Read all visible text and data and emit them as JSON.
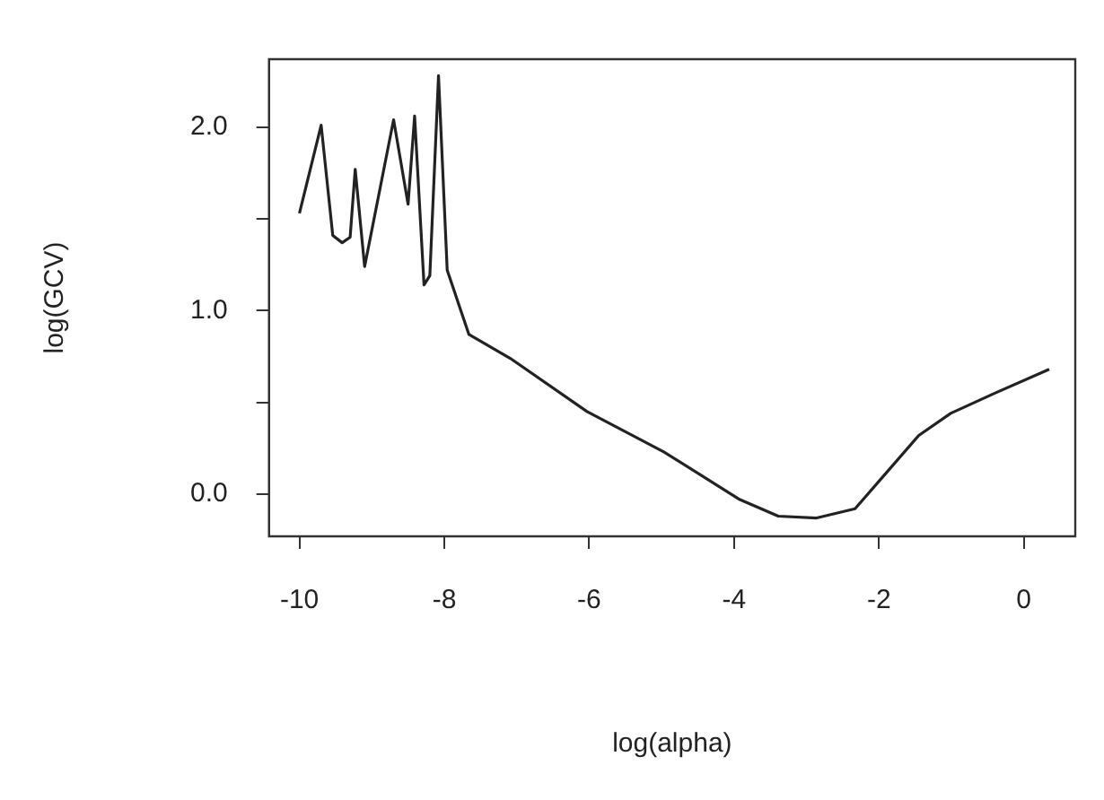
{
  "chart_data": {
    "type": "line",
    "xlabel": "log(alpha)",
    "ylabel": "log(GCV)",
    "x": [
      -10.0,
      -9.7,
      -9.54,
      -9.41,
      -9.3,
      -9.23,
      -9.1,
      -8.7,
      -8.5,
      -8.41,
      -8.28,
      -8.2,
      -8.08,
      -7.96,
      -7.66,
      -7.09,
      -6.03,
      -4.97,
      -3.92,
      -3.39,
      -2.86,
      -2.33,
      -1.89,
      -1.45,
      -1.01,
      -0.4,
      0.35
    ],
    "series": [
      {
        "color": "#222222",
        "values": [
          1.53,
          2.01,
          1.41,
          1.37,
          1.4,
          1.77,
          1.24,
          2.04,
          1.58,
          2.06,
          1.14,
          1.19,
          2.28,
          1.22,
          0.87,
          0.74,
          0.45,
          0.23,
          -0.03,
          -0.12,
          -0.13,
          -0.08,
          0.12,
          0.32,
          0.44,
          0.55,
          0.68
        ]
      }
    ],
    "xlim": [
      -10.42,
      0.71
    ],
    "xticks": [
      -10,
      -8,
      -6,
      -4,
      -2,
      0
    ],
    "ylim": [
      -0.23,
      2.37
    ],
    "yticks": [
      {
        "value": 0,
        "label": "0.0"
      },
      {
        "value": 0.5,
        "label": null
      },
      {
        "value": 1,
        "label": "1.0"
      },
      {
        "value": 1.5,
        "label": null
      },
      {
        "value": 2,
        "label": "2.0"
      }
    ],
    "grid": false,
    "legend": false,
    "marker": "none",
    "line_style": "solid"
  }
}
